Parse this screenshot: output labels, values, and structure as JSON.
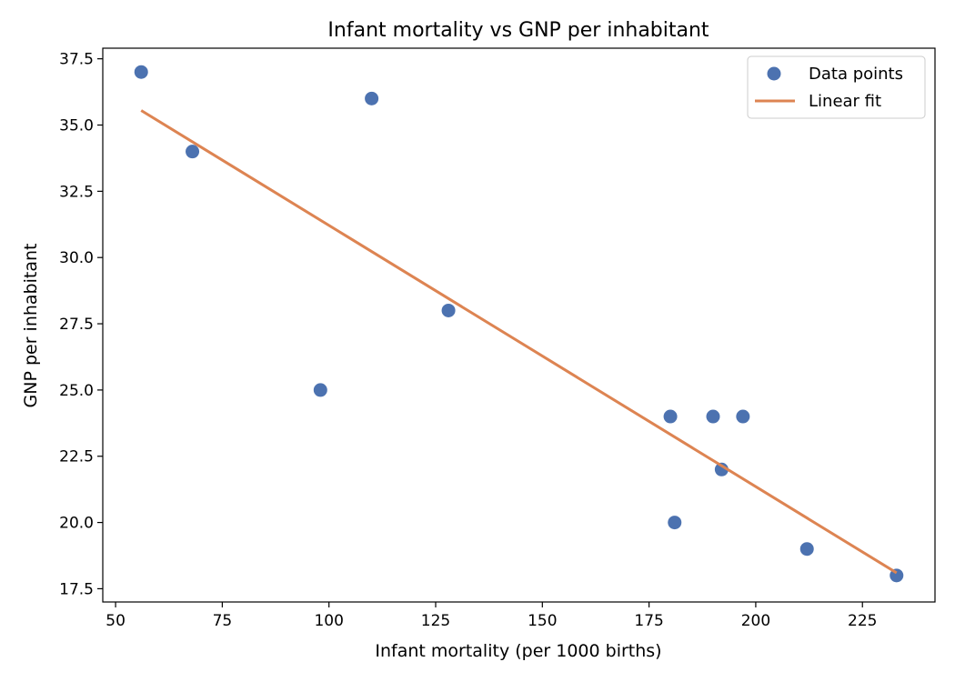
{
  "chart_data": {
    "type": "scatter",
    "title": "Infant mortality vs GNP per inhabitant",
    "xlabel": "Infant mortality (per 1000 births)",
    "ylabel": "GNP per inhabitant",
    "xlim": [
      47,
      242
    ],
    "ylim": [
      17.0,
      37.9
    ],
    "x_ticks": [
      50,
      75,
      100,
      125,
      150,
      175,
      200,
      225
    ],
    "y_ticks": [
      17.5,
      20.0,
      22.5,
      25.0,
      27.5,
      30.0,
      32.5,
      35.0,
      37.5
    ],
    "grid": false,
    "legend_position": "top-right",
    "series": [
      {
        "name": "Data points",
        "kind": "scatter",
        "color": "#4c72b0",
        "points": [
          {
            "x": 56,
            "y": 37
          },
          {
            "x": 68,
            "y": 34
          },
          {
            "x": 98,
            "y": 25
          },
          {
            "x": 110,
            "y": 36
          },
          {
            "x": 128,
            "y": 28
          },
          {
            "x": 180,
            "y": 24
          },
          {
            "x": 181,
            "y": 20
          },
          {
            "x": 190,
            "y": 24
          },
          {
            "x": 192,
            "y": 22
          },
          {
            "x": 197,
            "y": 24
          },
          {
            "x": 212,
            "y": 19
          },
          {
            "x": 233,
            "y": 18
          }
        ]
      },
      {
        "name": "Linear fit",
        "kind": "line",
        "color": "#dd8452",
        "points": [
          {
            "x": 56,
            "y": 35.55
          },
          {
            "x": 233,
            "y": 18.1
          }
        ]
      }
    ]
  }
}
